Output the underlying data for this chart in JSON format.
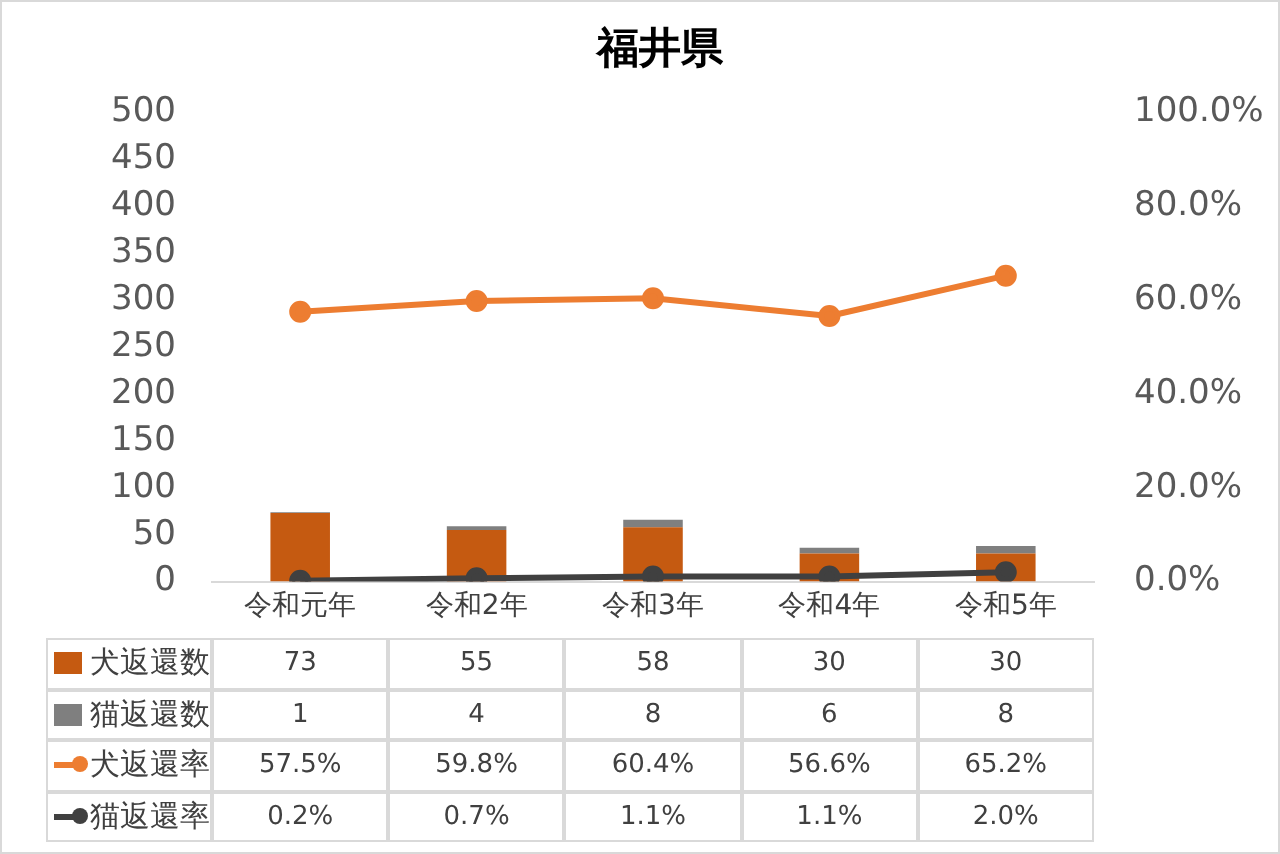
{
  "chart_data": {
    "type": "bar",
    "title": "福井県",
    "stacked": true,
    "legend": "bottom",
    "marker": "circle",
    "categories": [
      "令和元年",
      "令和2年",
      "令和3年",
      "令和4年",
      "令和5年"
    ],
    "ylim": [
      0,
      500
    ],
    "yticks": [
      0,
      50,
      100,
      150,
      200,
      250,
      300,
      350,
      400,
      450,
      500
    ],
    "y2lim": [
      0,
      100
    ],
    "y2ticks": [
      {
        "value": 0,
        "label": "0.0%"
      },
      {
        "value": 20,
        "label": "20.0%"
      },
      {
        "value": 40,
        "label": "40.0%"
      },
      {
        "value": 60,
        "label": "60.0%"
      },
      {
        "value": 80,
        "label": "80.0%"
      },
      {
        "value": 100,
        "label": "100.0%"
      }
    ],
    "series": [
      {
        "name": "犬返還数",
        "color": "#c55a11",
        "values": [
          73,
          55,
          58,
          30,
          30
        ],
        "value_labels": [
          "73",
          "55",
          "58",
          "30",
          "30"
        ]
      },
      {
        "name": "猫返還数",
        "color": "#7f7f7f",
        "values": [
          1,
          4,
          8,
          6,
          8
        ],
        "value_labels": [
          "1",
          "4",
          "8",
          "6",
          "8"
        ]
      },
      {
        "name": "犬返還率",
        "type": "line",
        "axis": "y2",
        "color": "#ed7d31",
        "values": [
          57.5,
          59.8,
          60.4,
          56.6,
          65.2
        ],
        "value_labels": [
          "57.5%",
          "59.8%",
          "60.4%",
          "56.6%",
          "65.2%"
        ]
      },
      {
        "name": "猫返還率",
        "type": "line",
        "axis": "y2",
        "color": "#404040",
        "values": [
          0.2,
          0.7,
          1.1,
          1.1,
          2.0
        ],
        "value_labels": [
          "0.2%",
          "0.7%",
          "1.1%",
          "1.1%",
          "2.0%"
        ]
      }
    ]
  }
}
